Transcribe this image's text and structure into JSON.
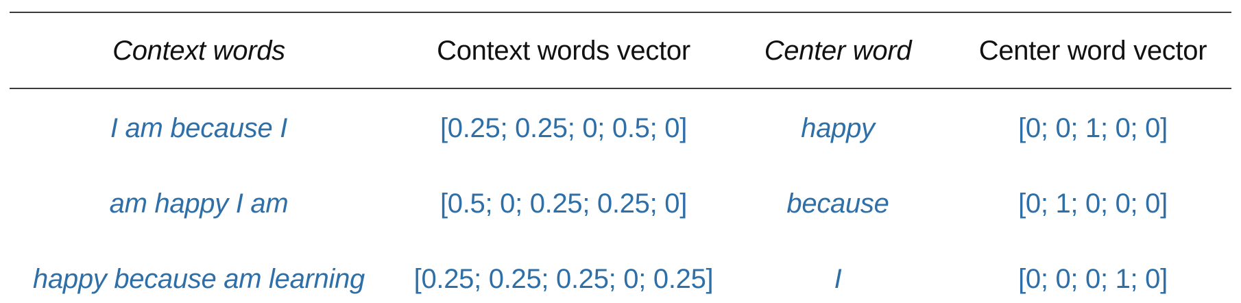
{
  "table": {
    "headers": {
      "context_words": "Context words",
      "context_words_vector": "Context words vector",
      "center_word": "Center word",
      "center_word_vector": "Center word vector"
    },
    "rows": [
      {
        "context_words": "I am because I",
        "context_words_vector": "[0.25; 0.25; 0; 0.5; 0]",
        "center_word": "happy",
        "center_word_vector": "[0; 0; 1; 0; 0]"
      },
      {
        "context_words": "am happy I am",
        "context_words_vector": "[0.5; 0; 0.25; 0.25; 0]",
        "center_word": "because",
        "center_word_vector": "[0; 1; 0; 0; 0]"
      },
      {
        "context_words": "happy because am learning",
        "context_words_vector": "[0.25; 0.25; 0.25; 0; 0.25]",
        "center_word": "I",
        "center_word_vector": "[0; 0; 0; 1; 0]"
      }
    ]
  },
  "colors": {
    "header_text": "#111111",
    "data_text": "#2e6fa8",
    "rule": "#3a3a3a"
  }
}
